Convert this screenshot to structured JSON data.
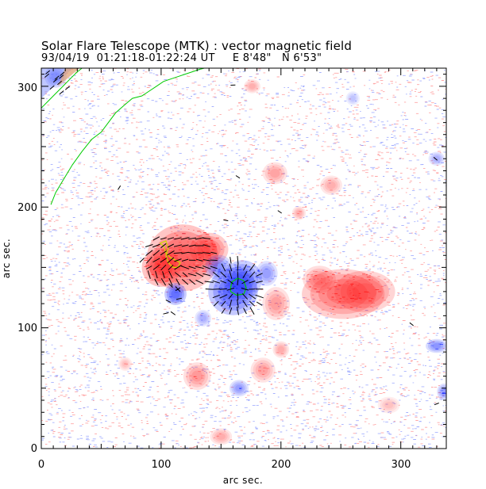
{
  "title": "Solar Flare Telescope (MTK) : vector magnetic field",
  "subtitle": "93/04/19  01:21:18-01:22:24 UT     E 8'48\"   N 6'53\"",
  "axes": {
    "xlabel": "arc sec.",
    "ylabel": "arc sec.",
    "x_ticks": [
      0,
      100,
      200,
      300
    ],
    "y_ticks": [
      0,
      100,
      200,
      300
    ],
    "xlim": [
      0,
      338
    ],
    "ylim": [
      0,
      315
    ]
  },
  "colors": {
    "positive": "#ff2020",
    "negative": "#2030ff",
    "contour_green": "#00cc00",
    "contour_yellow": "#ccdd00",
    "vector": "#000000"
  },
  "features": {
    "positive_regions": [
      {
        "x": 118,
        "y": 158,
        "rx": 26,
        "ry": 24,
        "strength": 1.0
      },
      {
        "x": 100,
        "y": 150,
        "rx": 14,
        "ry": 14,
        "strength": 1.0
      },
      {
        "x": 140,
        "y": 165,
        "rx": 14,
        "ry": 12,
        "strength": 0.8
      },
      {
        "x": 252,
        "y": 128,
        "rx": 30,
        "ry": 18,
        "strength": 0.75
      },
      {
        "x": 270,
        "y": 130,
        "rx": 22,
        "ry": 15,
        "strength": 0.7
      },
      {
        "x": 232,
        "y": 140,
        "rx": 12,
        "ry": 10,
        "strength": 0.5
      },
      {
        "x": 196,
        "y": 120,
        "rx": 10,
        "ry": 12,
        "strength": 0.4
      },
      {
        "x": 185,
        "y": 65,
        "rx": 9,
        "ry": 9,
        "strength": 0.35
      },
      {
        "x": 130,
        "y": 60,
        "rx": 10,
        "ry": 10,
        "strength": 0.45
      },
      {
        "x": 195,
        "y": 228,
        "rx": 9,
        "ry": 8,
        "strength": 0.35
      },
      {
        "x": 242,
        "y": 218,
        "rx": 8,
        "ry": 7,
        "strength": 0.25
      },
      {
        "x": 200,
        "y": 82,
        "rx": 6,
        "ry": 6,
        "strength": 0.3
      },
      {
        "x": 150,
        "y": 10,
        "rx": 8,
        "ry": 6,
        "strength": 0.3
      },
      {
        "x": 176,
        "y": 300,
        "rx": 6,
        "ry": 5,
        "strength": 0.25
      },
      {
        "x": 70,
        "y": 70,
        "rx": 5,
        "ry": 5,
        "strength": 0.2
      },
      {
        "x": 290,
        "y": 36,
        "rx": 8,
        "ry": 6,
        "strength": 0.2
      },
      {
        "x": 215,
        "y": 195,
        "rx": 5,
        "ry": 5,
        "strength": 0.25
      }
    ],
    "negative_regions": [
      {
        "x": 160,
        "y": 130,
        "rx": 18,
        "ry": 17,
        "strength": 1.0
      },
      {
        "x": 168,
        "y": 140,
        "rx": 14,
        "ry": 14,
        "strength": 0.85
      },
      {
        "x": 148,
        "y": 150,
        "rx": 10,
        "ry": 9,
        "strength": 0.6
      },
      {
        "x": 112,
        "y": 128,
        "rx": 8,
        "ry": 8,
        "strength": 0.95
      },
      {
        "x": 188,
        "y": 145,
        "rx": 8,
        "ry": 9,
        "strength": 0.45
      },
      {
        "x": 165,
        "y": 50,
        "rx": 7,
        "ry": 6,
        "strength": 0.45
      },
      {
        "x": 330,
        "y": 85,
        "rx": 8,
        "ry": 5,
        "strength": 0.55
      },
      {
        "x": 336,
        "y": 47,
        "rx": 5,
        "ry": 6,
        "strength": 0.5
      },
      {
        "x": 135,
        "y": 108,
        "rx": 6,
        "ry": 6,
        "strength": 0.3
      },
      {
        "x": 330,
        "y": 240,
        "rx": 6,
        "ry": 5,
        "strength": 0.3
      },
      {
        "x": 260,
        "y": 290,
        "rx": 5,
        "ry": 5,
        "strength": 0.2
      },
      {
        "x": 12,
        "y": 308,
        "rx": 8,
        "ry": 8,
        "strength": 0.6
      }
    ],
    "limb_contour": [
      [
        0,
        282
      ],
      [
        6,
        288
      ],
      [
        12,
        294
      ],
      [
        18,
        300
      ],
      [
        24,
        306
      ],
      [
        30,
        312
      ],
      [
        34,
        315
      ]
    ],
    "neutral_line": [
      [
        8,
        202
      ],
      [
        12,
        212
      ],
      [
        18,
        222
      ],
      [
        26,
        235
      ],
      [
        34,
        246
      ],
      [
        42,
        256
      ],
      [
        50,
        262
      ],
      [
        56,
        270
      ],
      [
        62,
        278
      ],
      [
        70,
        285
      ],
      [
        76,
        290
      ],
      [
        84,
        292
      ],
      [
        90,
        296
      ],
      [
        96,
        300
      ],
      [
        102,
        304
      ],
      [
        108,
        306
      ],
      [
        114,
        308
      ],
      [
        120,
        310
      ],
      [
        126,
        312
      ],
      [
        132,
        314
      ],
      [
        136,
        315
      ]
    ],
    "contour_pos": [
      [
        99,
        170
      ],
      [
        104,
        172
      ],
      [
        106,
        166
      ],
      [
        104,
        160
      ],
      [
        106,
        154
      ],
      [
        110,
        150
      ],
      [
        114,
        150
      ],
      [
        116,
        154
      ],
      [
        112,
        156
      ],
      [
        108,
        158
      ],
      [
        104,
        162
      ],
      [
        102,
        168
      ],
      [
        99,
        170
      ]
    ],
    "contour_neg": [
      [
        158,
        130
      ],
      [
        163,
        127
      ],
      [
        169,
        128
      ],
      [
        171,
        133
      ],
      [
        169,
        139
      ],
      [
        164,
        141
      ],
      [
        159,
        138
      ],
      [
        158,
        133
      ],
      [
        158,
        130
      ]
    ]
  }
}
